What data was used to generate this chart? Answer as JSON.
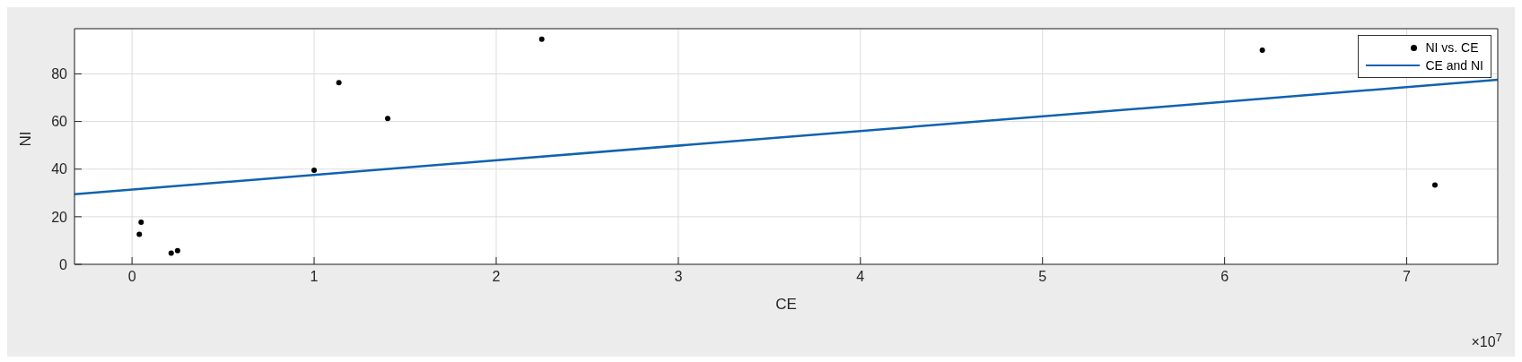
{
  "chart_data": {
    "type": "scatter",
    "xlabel": "CE",
    "ylabel": "NI",
    "annotations": [
      "×10$^{7}$"
    ],
    "xlim": [
      -0.316,
      7.5
    ],
    "ylim": [
      0,
      99
    ],
    "xticks": [
      0,
      1,
      2,
      3,
      4,
      5,
      6,
      7
    ],
    "yticks": [
      0,
      20,
      40,
      60,
      80
    ],
    "grid": true,
    "legend": "top right",
    "marker": "circle",
    "series": [
      {
        "name": "NI vs. CE",
        "color": "#000000",
        "x": [
          0.04,
          0.05,
          0.215,
          0.25,
          1.0,
          1.136,
          1.404,
          2.25,
          6.207,
          7.155
        ],
        "values": [
          12.6,
          17.7,
          4.7,
          5.7,
          39.5,
          76.3,
          61.3,
          94.6,
          90.0,
          33.3
        ]
      },
      {
        "name": "CE and NI",
        "type": "line",
        "color": "#0f62b0",
        "line_style": "solid",
        "marker": "none",
        "x": [
          -0.316,
          7.5
        ],
        "values": [
          29.5,
          77.5
        ]
      }
    ]
  }
}
